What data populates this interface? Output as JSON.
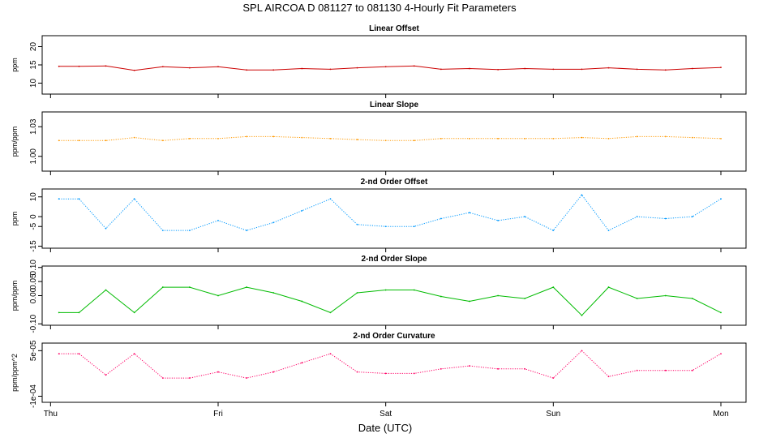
{
  "figure": {
    "title": "SPL   AIRCOA D    081127 to 081130   4-Hourly Fit Parameters",
    "xlabel": "Date (UTC)",
    "x_range": [
      -0.05,
      4.15
    ],
    "x_unit": "days since Thu 00:00 UTC",
    "x_ticks": [
      {
        "value": 0,
        "label": "Thu"
      },
      {
        "value": 1,
        "label": "Fri"
      },
      {
        "value": 2,
        "label": "Sat"
      },
      {
        "value": 3,
        "label": "Sun"
      },
      {
        "value": 4,
        "label": "Mon"
      }
    ]
  },
  "chart_data": [
    {
      "type": "line",
      "title": "Linear Offset",
      "ylabel": "ppm",
      "ylim": [
        7,
        23
      ],
      "yticks": [
        {
          "value": 10,
          "label": "10"
        },
        {
          "value": 15,
          "label": "15"
        },
        {
          "value": 20,
          "label": "20"
        }
      ],
      "color": "#cc0000",
      "line_style": "solid",
      "x": [
        0.05,
        0.17,
        0.33,
        0.5,
        0.67,
        0.83,
        1.0,
        1.17,
        1.33,
        1.5,
        1.67,
        1.83,
        2.0,
        2.17,
        2.33,
        2.5,
        2.67,
        2.83,
        3.0,
        3.17,
        3.33,
        3.5,
        3.67,
        3.83,
        4.0
      ],
      "values": [
        14.6,
        14.6,
        14.7,
        13.5,
        14.5,
        14.2,
        14.5,
        13.6,
        13.6,
        14.0,
        13.8,
        14.2,
        14.5,
        14.7,
        13.8,
        14.0,
        13.7,
        14.0,
        13.8,
        13.8,
        14.2,
        13.8,
        13.6,
        14.0,
        14.3
      ]
    },
    {
      "type": "line",
      "title": "Linear Slope",
      "ylabel": "ppm/ppm",
      "ylim": [
        0.985,
        1.045
      ],
      "yticks": [
        {
          "value": 1.0,
          "label": "1.00"
        },
        {
          "value": 1.03,
          "label": "1.03"
        }
      ],
      "color": "#ff9900",
      "line_style": "dotted",
      "x": [
        0.05,
        0.17,
        0.33,
        0.5,
        0.67,
        0.83,
        1.0,
        1.17,
        1.33,
        1.5,
        1.67,
        1.83,
        2.0,
        2.17,
        2.33,
        2.5,
        2.67,
        2.83,
        3.0,
        3.17,
        3.33,
        3.5,
        3.67,
        3.83,
        4.0
      ],
      "values": [
        1.016,
        1.016,
        1.016,
        1.019,
        1.016,
        1.018,
        1.018,
        1.02,
        1.02,
        1.019,
        1.018,
        1.017,
        1.016,
        1.016,
        1.018,
        1.018,
        1.018,
        1.018,
        1.018,
        1.019,
        1.018,
        1.02,
        1.02,
        1.019,
        1.018
      ]
    },
    {
      "type": "line",
      "title": "2-nd Order Offset",
      "ylabel": "ppm",
      "ylim": [
        -16,
        14
      ],
      "yticks": [
        {
          "value": -15,
          "label": "-15"
        },
        {
          "value": -5,
          "label": "-5"
        },
        {
          "value": 0,
          "label": "0"
        },
        {
          "value": 10,
          "label": "10"
        }
      ],
      "color": "#0099ff",
      "line_style": "dotted",
      "x": [
        0.05,
        0.17,
        0.33,
        0.5,
        0.67,
        0.83,
        1.0,
        1.17,
        1.33,
        1.5,
        1.67,
        1.83,
        2.0,
        2.17,
        2.33,
        2.5,
        2.67,
        2.83,
        3.0,
        3.17,
        3.33,
        3.5,
        3.67,
        3.83,
        4.0
      ],
      "values": [
        9,
        9,
        -6,
        9,
        -7,
        -7,
        -2,
        -7,
        -3,
        3,
        9,
        -4,
        -5,
        -5,
        -1,
        2,
        -2,
        0,
        -7,
        11,
        -7,
        0,
        -1,
        0,
        9
      ]
    },
    {
      "type": "line",
      "title": "2-nd Order Slope",
      "ylabel": "ppm/ppm",
      "ylim": [
        -0.105,
        0.105
      ],
      "yticks": [
        {
          "value": -0.1,
          "label": "-0.10"
        },
        {
          "value": 0.0,
          "label": "0.00"
        },
        {
          "value": 0.05,
          "label": "0.05"
        },
        {
          "value": 0.1,
          "label": "0.10"
        }
      ],
      "color": "#00bb00",
      "line_style": "solid",
      "x": [
        0.05,
        0.17,
        0.33,
        0.5,
        0.67,
        0.83,
        1.0,
        1.17,
        1.33,
        1.5,
        1.67,
        1.83,
        2.0,
        2.17,
        2.33,
        2.5,
        2.67,
        2.83,
        3.0,
        3.17,
        3.33,
        3.5,
        3.67,
        3.83,
        4.0
      ],
      "values": [
        -0.06,
        -0.06,
        0.02,
        -0.06,
        0.03,
        0.03,
        0.0,
        0.03,
        0.01,
        -0.02,
        -0.06,
        0.01,
        0.02,
        0.02,
        -0.003,
        -0.02,
        0.0,
        -0.01,
        0.03,
        -0.07,
        0.03,
        -0.01,
        0.0,
        -0.01,
        -0.06
      ]
    },
    {
      "type": "line",
      "title": "2-nd Order Curvature",
      "ylabel": "ppm/ppm^2",
      "ylim": [
        -0.00012,
        7.5e-05
      ],
      "yticks": [
        {
          "value": -0.0001,
          "label": "-1e-04"
        },
        {
          "value": 5e-05,
          "label": "5e-05"
        }
      ],
      "color": "#ff0066",
      "line_style": "dotted",
      "x": [
        0.05,
        0.17,
        0.33,
        0.5,
        0.67,
        0.83,
        1.0,
        1.17,
        1.33,
        1.5,
        1.67,
        1.83,
        2.0,
        2.17,
        2.33,
        2.5,
        2.67,
        2.83,
        3.0,
        3.17,
        3.33,
        3.5,
        3.67,
        3.83,
        4.0
      ],
      "values": [
        4e-05,
        4e-05,
        -3e-05,
        4e-05,
        -4e-05,
        -4e-05,
        -2e-05,
        -4e-05,
        -2e-05,
        1e-05,
        4e-05,
        -2e-05,
        -2.5e-05,
        -2.5e-05,
        -1e-05,
        0.0,
        -1e-05,
        -1e-05,
        -4e-05,
        5e-05,
        -3.5e-05,
        -1.5e-05,
        -1.5e-05,
        -1.5e-05,
        4e-05
      ]
    }
  ]
}
